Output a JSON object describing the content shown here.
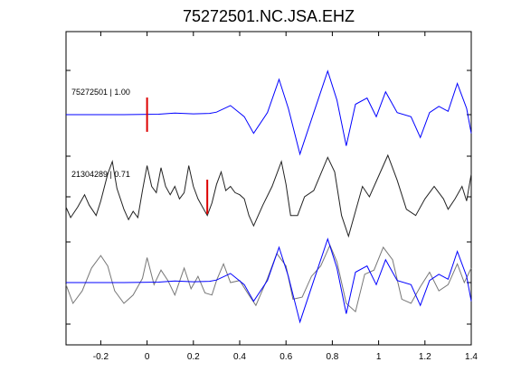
{
  "chart_data": {
    "type": "line",
    "title": "75272501.NC.JSA.EHZ",
    "xlabel": "",
    "ylabel": "",
    "xlim": [
      -0.35,
      1.4
    ],
    "x_ticks": [
      -0.2,
      0,
      0.2,
      0.4,
      0.6,
      0.8,
      1,
      1.2,
      1.4
    ],
    "x_tick_labels": [
      "-0.2",
      "0",
      "0.2",
      "0.4",
      "0.6",
      "0.8",
      "1",
      "1.2",
      "1.4"
    ],
    "grid": false,
    "colors": {
      "reference": "#0000ff",
      "correlated": "#222222",
      "overlay_gray": "#777777",
      "pick_marker": "#dd0000"
    },
    "traces": [
      {
        "label": "75272501 | 1.00",
        "color": "#0000ff",
        "pick_time": 0.0,
        "points": [
          [
            -0.35,
            0
          ],
          [
            -0.1,
            0
          ],
          [
            0.05,
            0.01
          ],
          [
            0.12,
            0.04
          ],
          [
            0.2,
            0.02
          ],
          [
            0.27,
            0.03
          ],
          [
            0.3,
            0.06
          ],
          [
            0.36,
            0.22
          ],
          [
            0.42,
            -0.05
          ],
          [
            0.46,
            -0.45
          ],
          [
            0.52,
            0.05
          ],
          [
            0.57,
            0.85
          ],
          [
            0.61,
            0.15
          ],
          [
            0.66,
            -0.95
          ],
          [
            0.72,
            0.05
          ],
          [
            0.78,
            1.05
          ],
          [
            0.82,
            0.35
          ],
          [
            0.86,
            -0.75
          ],
          [
            0.9,
            0.25
          ],
          [
            0.95,
            0.4
          ],
          [
            0.99,
            -0.05
          ],
          [
            1.03,
            0.55
          ],
          [
            1.08,
            0.05
          ],
          [
            1.14,
            -0.05
          ],
          [
            1.18,
            -0.55
          ],
          [
            1.22,
            0.05
          ],
          [
            1.26,
            0.2
          ],
          [
            1.3,
            0.08
          ],
          [
            1.34,
            0.75
          ],
          [
            1.38,
            0.15
          ],
          [
            1.4,
            -0.45
          ]
        ]
      },
      {
        "label": "21304289 | 0.71",
        "color": "#222222",
        "pick_time": 0.26,
        "points": [
          [
            -0.35,
            -0.25
          ],
          [
            -0.33,
            -0.5
          ],
          [
            -0.3,
            -0.25
          ],
          [
            -0.27,
            0.05
          ],
          [
            -0.25,
            -0.2
          ],
          [
            -0.22,
            -0.45
          ],
          [
            -0.2,
            -0.1
          ],
          [
            -0.17,
            0.55
          ],
          [
            -0.15,
            0.85
          ],
          [
            -0.13,
            0.2
          ],
          [
            -0.1,
            -0.3
          ],
          [
            -0.08,
            -0.55
          ],
          [
            -0.06,
            -0.35
          ],
          [
            -0.04,
            -0.5
          ],
          [
            -0.02,
            0.15
          ],
          [
            0.0,
            0.75
          ],
          [
            0.02,
            0.25
          ],
          [
            0.04,
            0.1
          ],
          [
            0.06,
            0.7
          ],
          [
            0.08,
            0.25
          ],
          [
            0.1,
            0.05
          ],
          [
            0.12,
            0.25
          ],
          [
            0.14,
            -0.05
          ],
          [
            0.16,
            0.1
          ],
          [
            0.18,
            0.75
          ],
          [
            0.2,
            0.25
          ],
          [
            0.22,
            -0.05
          ],
          [
            0.24,
            -0.25
          ],
          [
            0.26,
            -0.45
          ],
          [
            0.28,
            -0.15
          ],
          [
            0.3,
            0.3
          ],
          [
            0.32,
            0.6
          ],
          [
            0.34,
            0.15
          ],
          [
            0.36,
            0.25
          ],
          [
            0.38,
            0.1
          ],
          [
            0.4,
            0.05
          ],
          [
            0.42,
            -0.05
          ],
          [
            0.44,
            -0.45
          ],
          [
            0.46,
            -0.7
          ],
          [
            0.5,
            -0.2
          ],
          [
            0.54,
            0.25
          ],
          [
            0.58,
            0.85
          ],
          [
            0.6,
            0.3
          ],
          [
            0.62,
            -0.45
          ],
          [
            0.65,
            -0.45
          ],
          [
            0.68,
            0.0
          ],
          [
            0.72,
            0.15
          ],
          [
            0.75,
            0.55
          ],
          [
            0.78,
            0.95
          ],
          [
            0.81,
            0.6
          ],
          [
            0.84,
            -0.45
          ],
          [
            0.87,
            -0.95
          ],
          [
            0.9,
            -0.35
          ],
          [
            0.93,
            0.25
          ],
          [
            0.96,
            0.0
          ],
          [
            1.0,
            0.5
          ],
          [
            1.04,
            1.0
          ],
          [
            1.08,
            0.4
          ],
          [
            1.12,
            -0.3
          ],
          [
            1.16,
            -0.45
          ],
          [
            1.2,
            -0.05
          ],
          [
            1.24,
            0.25
          ],
          [
            1.28,
            -0.05
          ],
          [
            1.3,
            -0.3
          ],
          [
            1.33,
            -0.05
          ],
          [
            1.36,
            0.25
          ],
          [
            1.38,
            -0.1
          ],
          [
            1.4,
            0.55
          ]
        ]
      }
    ],
    "overlay": {
      "gray_points": [
        [
          -0.35,
          -0.05
        ],
        [
          -0.32,
          -0.5
        ],
        [
          -0.28,
          -0.2
        ],
        [
          -0.24,
          0.35
        ],
        [
          -0.2,
          0.65
        ],
        [
          -0.17,
          0.4
        ],
        [
          -0.14,
          -0.2
        ],
        [
          -0.1,
          -0.5
        ],
        [
          -0.06,
          -0.3
        ],
        [
          -0.02,
          0.1
        ],
        [
          0.0,
          0.6
        ],
        [
          0.03,
          -0.05
        ],
        [
          0.06,
          0.3
        ],
        [
          0.09,
          0.05
        ],
        [
          0.12,
          -0.3
        ],
        [
          0.16,
          0.35
        ],
        [
          0.19,
          -0.15
        ],
        [
          0.22,
          0.15
        ],
        [
          0.25,
          -0.25
        ],
        [
          0.28,
          -0.3
        ],
        [
          0.3,
          0.05
        ],
        [
          0.33,
          0.45
        ],
        [
          0.36,
          0.0
        ],
        [
          0.4,
          0.05
        ],
        [
          0.44,
          -0.3
        ],
        [
          0.47,
          -0.55
        ],
        [
          0.52,
          0.1
        ],
        [
          0.56,
          0.7
        ],
        [
          0.6,
          0.4
        ],
        [
          0.63,
          -0.4
        ],
        [
          0.67,
          -0.35
        ],
        [
          0.71,
          0.15
        ],
        [
          0.75,
          0.4
        ],
        [
          0.79,
          0.9
        ],
        [
          0.82,
          0.5
        ],
        [
          0.86,
          -0.5
        ],
        [
          0.9,
          -0.7
        ],
        [
          0.94,
          0.2
        ],
        [
          0.98,
          0.3
        ],
        [
          1.02,
          0.85
        ],
        [
          1.06,
          0.55
        ],
        [
          1.1,
          -0.4
        ],
        [
          1.14,
          -0.5
        ],
        [
          1.18,
          -0.1
        ],
        [
          1.22,
          0.25
        ],
        [
          1.26,
          -0.2
        ],
        [
          1.3,
          -0.05
        ],
        [
          1.34,
          0.45
        ],
        [
          1.37,
          0.0
        ],
        [
          1.4,
          0.35
        ]
      ]
    }
  }
}
